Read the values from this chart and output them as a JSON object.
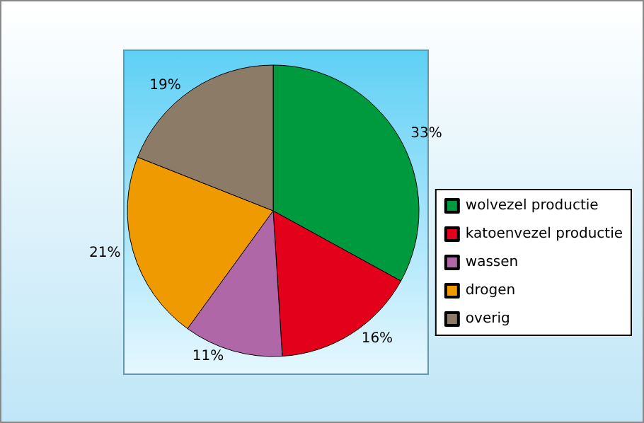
{
  "chart_data": {
    "type": "pie",
    "categories": [
      "wolvezel productie",
      "katoenvezel productie",
      "wassen",
      "drogen",
      "overig"
    ],
    "values": [
      33,
      16,
      11,
      21,
      19
    ],
    "colors": [
      "#009a3e",
      "#e3001b",
      "#b067a8",
      "#ef9a00",
      "#8c7b66"
    ],
    "value_labels": [
      "33%",
      "16%",
      "11%",
      "21%",
      "19%"
    ],
    "legend": "right"
  }
}
